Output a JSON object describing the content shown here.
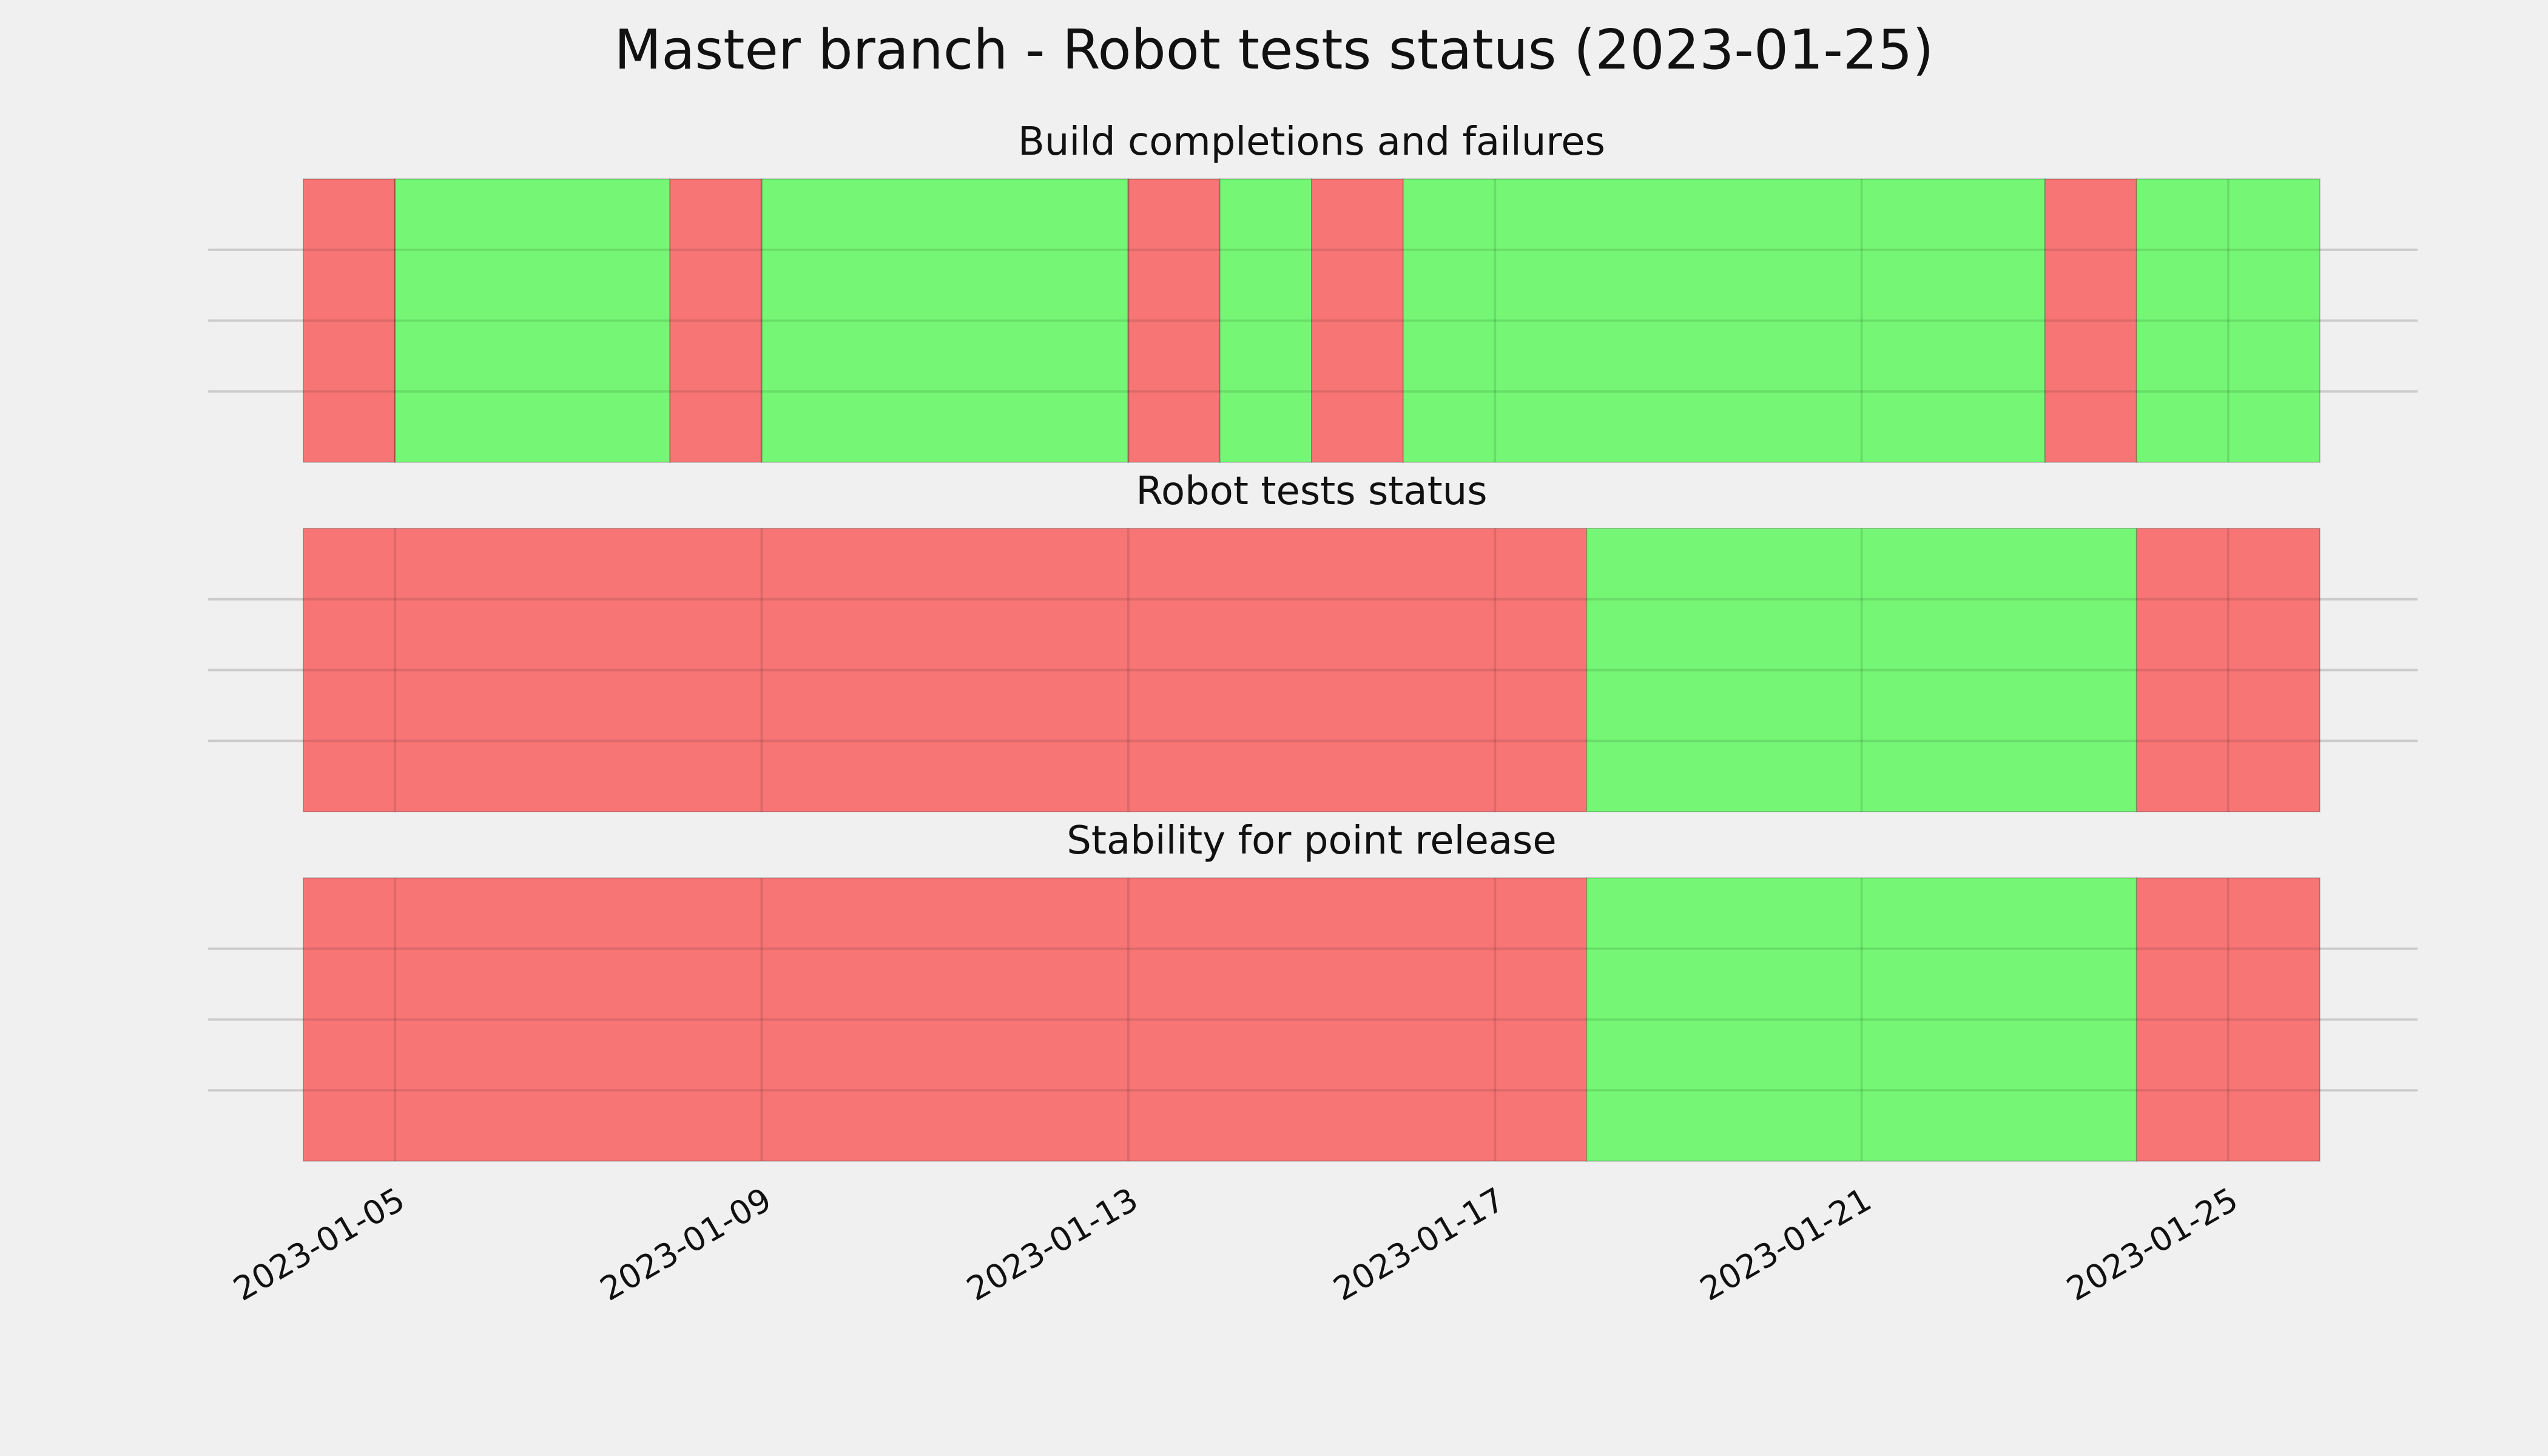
{
  "title": "Master branch - Robot tests status (2023-01-25)",
  "colors": {
    "pass": "#75f775",
    "fail": "#f77575",
    "background": "#f0f0f0",
    "grid": "#cbcbcb"
  },
  "chart_data": {
    "type": "timeline",
    "x_axis": {
      "type": "date",
      "range": [
        "2023-01-04",
        "2023-01-26"
      ],
      "tick_labels": [
        "2023-01-05",
        "2023-01-09",
        "2023-01-13",
        "2023-01-17",
        "2023-01-21",
        "2023-01-25"
      ],
      "tick_label_rotation": "30 degrees"
    },
    "grid": true,
    "panels": [
      {
        "title": "Build completions and failures",
        "segments": [
          {
            "start": "2023-01-04",
            "end": "2023-01-05",
            "status": "fail"
          },
          {
            "start": "2023-01-05",
            "end": "2023-01-08",
            "status": "pass"
          },
          {
            "start": "2023-01-08",
            "end": "2023-01-09",
            "status": "fail"
          },
          {
            "start": "2023-01-09",
            "end": "2023-01-13",
            "status": "pass"
          },
          {
            "start": "2023-01-13",
            "end": "2023-01-14",
            "status": "fail"
          },
          {
            "start": "2023-01-14",
            "end": "2023-01-15",
            "status": "pass"
          },
          {
            "start": "2023-01-15",
            "end": "2023-01-16",
            "status": "fail"
          },
          {
            "start": "2023-01-16",
            "end": "2023-01-23",
            "status": "pass"
          },
          {
            "start": "2023-01-23",
            "end": "2023-01-24",
            "status": "fail"
          },
          {
            "start": "2023-01-24",
            "end": "2023-01-26",
            "status": "pass"
          }
        ]
      },
      {
        "title": "Robot tests status",
        "segments": [
          {
            "start": "2023-01-04",
            "end": "2023-01-18",
            "status": "fail"
          },
          {
            "start": "2023-01-18",
            "end": "2023-01-24",
            "status": "pass"
          },
          {
            "start": "2023-01-24",
            "end": "2023-01-26",
            "status": "fail"
          }
        ]
      },
      {
        "title": "Stability for point release",
        "segments": [
          {
            "start": "2023-01-04",
            "end": "2023-01-18",
            "status": "fail"
          },
          {
            "start": "2023-01-18",
            "end": "2023-01-24",
            "status": "pass"
          },
          {
            "start": "2023-01-24",
            "end": "2023-01-26",
            "status": "fail"
          }
        ]
      }
    ]
  }
}
